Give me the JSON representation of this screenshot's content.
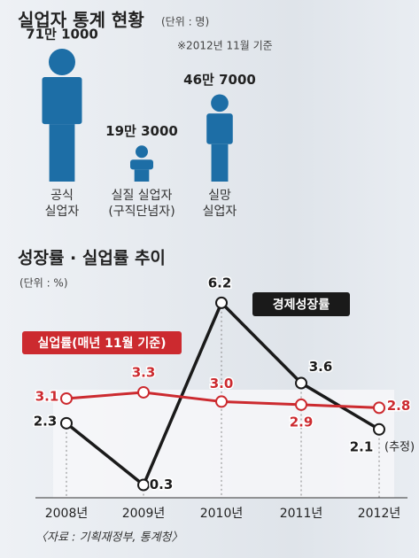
{
  "charts": [
    {
      "type": "pictogram",
      "title": "실업자 통계 현황",
      "unit": "(단위 : 명)",
      "note": "※2012년 11월 기준",
      "categories": [
        "공식\n실업자",
        "실질 실업자\n(구직단념자)",
        "실망\n실업자"
      ],
      "values": [
        711000,
        193000,
        467000
      ],
      "value_labels": [
        "71만 1000",
        "19만 3000",
        "46만 7000"
      ],
      "color": "#1d6ea6"
    },
    {
      "type": "line",
      "title": "성장률 · 실업률 추이",
      "unit": "(단위 : %)",
      "categories": [
        "2008년",
        "2009년",
        "2010년",
        "2011년",
        "2012년"
      ],
      "series": [
        {
          "name": "경제성장률",
          "color": "#1a1a1a",
          "values": [
            2.3,
            0.3,
            6.2,
            3.6,
            2.1
          ]
        },
        {
          "name": "실업률(매년 11월 기준)",
          "color": "#cc2a2f",
          "values": [
            3.1,
            3.3,
            3.0,
            2.9,
            2.8
          ],
          "value_labels": [
            "3.1",
            "3.3",
            "3.0",
            "2.9",
            "2.8"
          ]
        }
      ],
      "annotation": "(추정)",
      "ylim": [
        0,
        7
      ],
      "source": "〈자료 : 기획재정부, 통계청〉"
    }
  ]
}
